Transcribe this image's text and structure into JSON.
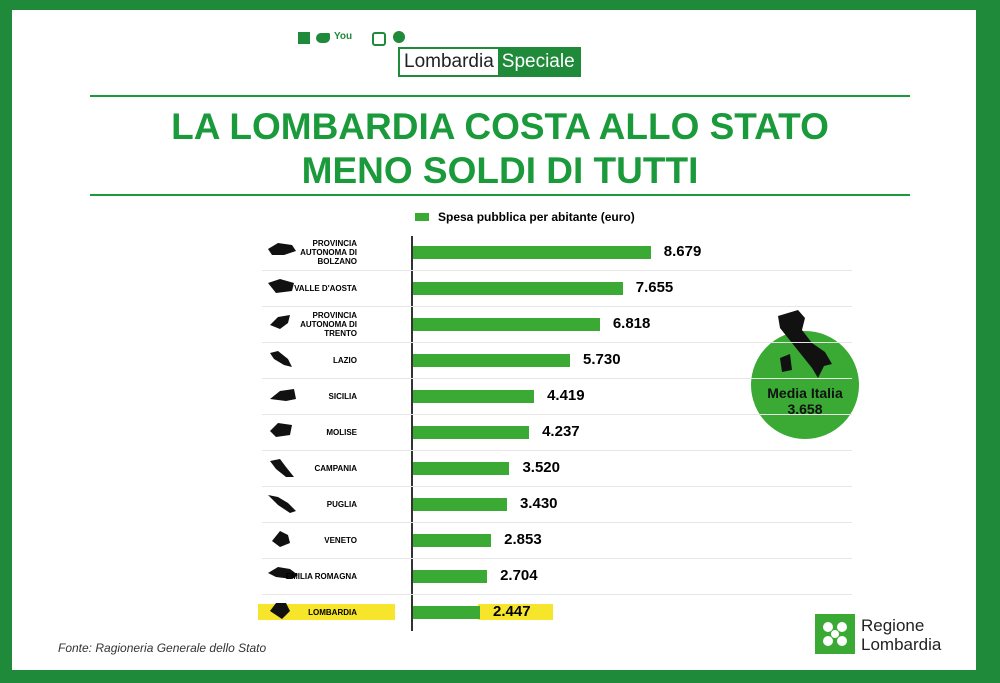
{
  "header": {
    "brand_left": "Lombardia",
    "brand_right": "Speciale",
    "social_text": "You"
  },
  "chart_data": {
    "type": "bar",
    "orientation": "horizontal",
    "title_lines": [
      "LA LOMBARDIA COSTA ALLO STATO",
      "MENO SOLDI DI TUTTI"
    ],
    "categories": [
      "PROVINCIA AUTONOMA DI BOLZANO",
      "VALLE D'AOSTA",
      "PROVINCIA AUTONOMA DI TRENTO",
      "LAZIO",
      "SICILIA",
      "MOLISE",
      "CAMPANIA",
      "PUGLIA",
      "VENETO",
      "EMILIA ROMAGNA",
      "LOMBARDIA"
    ],
    "series": [
      {
        "name": "Spesa pubblica per abitante (euro)",
        "color": "#3aaa35",
        "values": [
          8679,
          7655,
          6818,
          5730,
          4419,
          4237,
          3520,
          3430,
          2853,
          2704,
          2447
        ],
        "value_labels": [
          "8.679",
          "7.655",
          "6.818",
          "5.730",
          "4.419",
          "4.237",
          "3.520",
          "3.430",
          "2.853",
          "2.704",
          "2.447"
        ]
      }
    ],
    "xlim": [
      0,
      10000
    ],
    "highlight": "LOMBARDIA",
    "highlight_color": "#f7e52b",
    "average": {
      "label": "Media Italia",
      "value": 3658,
      "value_label": "3.658",
      "color": "#3aaa35"
    },
    "source": "Fonte: Ragioneria Generale dello Stato"
  },
  "footer": {
    "logo_line1": "Regione",
    "logo_line2": "Lombardia"
  }
}
